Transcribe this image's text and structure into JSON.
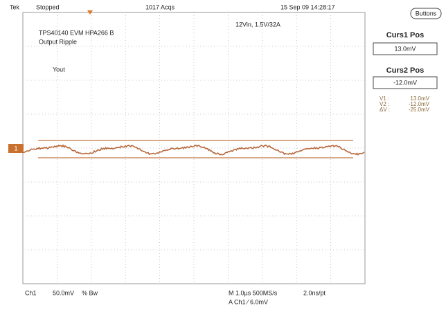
{
  "header": {
    "brand": "Tek",
    "state": "Stopped",
    "acqs": "1017 Acqs",
    "datetime": "15 Sep 09 14:28:17"
  },
  "side": {
    "buttons": "Buttons",
    "curs1_title": "Curs1 Pos",
    "curs1_value": "13.0mV",
    "curs2_title": "Curs2 Pos",
    "curs2_value": "-12.0mV",
    "readout": [
      [
        "V1 :",
        "13.0mV"
      ],
      [
        "V2 :",
        "-12.0mV"
      ],
      [
        "ΔV :",
        "-25.0mV"
      ]
    ]
  },
  "screen": {
    "line1": "TPS40140 EVM HPA266 B",
    "line2": "Output Ripple",
    "label": "Yout",
    "conditions": "12Vin, 1.5V/32A",
    "channel_marker": "1"
  },
  "footer": {
    "channel": "Ch1",
    "scale": "50.0mV",
    "coupling": "% Bw",
    "timebase": "M 1.0µs 500MS/s",
    "resolution": "2.0ns/pt",
    "trigger": "A  Ch1  ⁄  6.0mV"
  }
}
